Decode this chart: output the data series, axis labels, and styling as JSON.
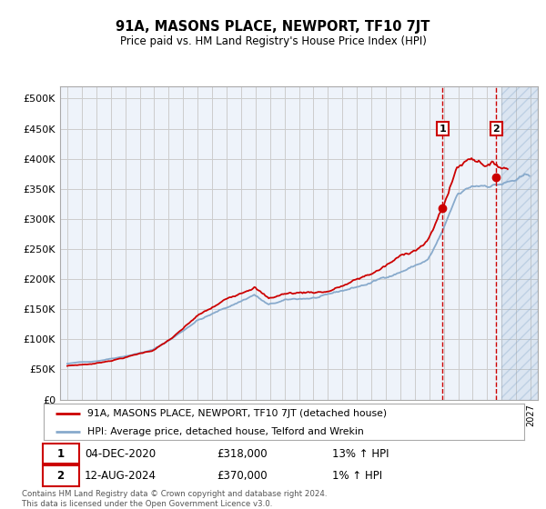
{
  "title": "91A, MASONS PLACE, NEWPORT, TF10 7JT",
  "subtitle": "Price paid vs. HM Land Registry's House Price Index (HPI)",
  "legend_line1": "91A, MASONS PLACE, NEWPORT, TF10 7JT (detached house)",
  "legend_line2": "HPI: Average price, detached house, Telford and Wrekin",
  "annotation1_date": "04-DEC-2020",
  "annotation1_price": "£318,000",
  "annotation1_hpi": "13% ↑ HPI",
  "annotation2_date": "12-AUG-2024",
  "annotation2_price": "£370,000",
  "annotation2_hpi": "1% ↑ HPI",
  "footer": "Contains HM Land Registry data © Crown copyright and database right 2024.\nThis data is licensed under the Open Government Licence v3.0.",
  "red_color": "#cc0000",
  "blue_color": "#88aacc",
  "grid_color": "#cccccc",
  "background_color": "#ffffff",
  "plot_bg_color": "#eef3fa",
  "annotation_vline_color": "#cc0000",
  "ylim": [
    0,
    520000
  ],
  "yticks": [
    0,
    50000,
    100000,
    150000,
    200000,
    250000,
    300000,
    350000,
    400000,
    450000,
    500000
  ],
  "point1_x": 2020.92,
  "point1_y": 318000,
  "point2_x": 2024.62,
  "point2_y": 370000,
  "hatch_start": 2025.0,
  "hatch_end": 2027.5,
  "x_min": 1994.5,
  "x_max": 2027.5
}
